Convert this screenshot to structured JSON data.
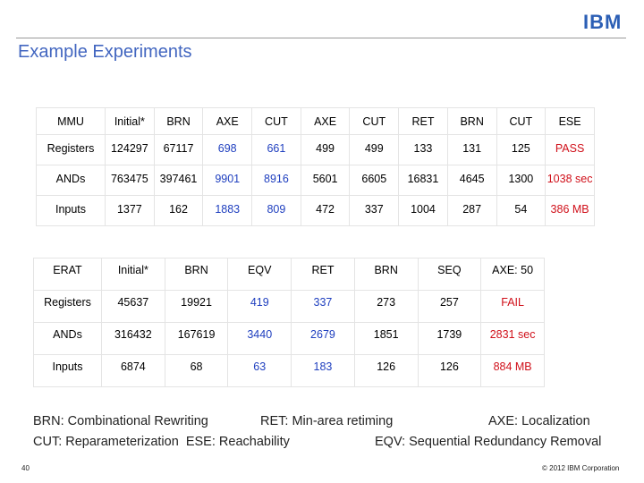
{
  "header": {
    "logo": "IBM",
    "title": "Example Experiments"
  },
  "table1": {
    "header": [
      "MMU",
      "Initial*",
      "BRN",
      "AXE",
      "CUT",
      "AXE",
      "CUT",
      "RET",
      "BRN",
      "CUT",
      "ESE"
    ],
    "rows": [
      [
        "Registers",
        124297,
        67117,
        698,
        661,
        499,
        499,
        133,
        131,
        125,
        "PASS"
      ],
      [
        "ANDs",
        763475,
        397461,
        9901,
        8916,
        5601,
        6605,
        16831,
        4645,
        1300,
        "1038 sec"
      ],
      [
        "Inputs",
        1377,
        162,
        1883,
        809,
        472,
        337,
        1004,
        287,
        54,
        "386 MB"
      ]
    ]
  },
  "table2": {
    "header": [
      "ERAT",
      "Initial*",
      "BRN",
      "EQV",
      "RET",
      "BRN",
      "SEQ",
      "AXE: 50"
    ],
    "rows": [
      [
        "Registers",
        45637,
        19921,
        419,
        337,
        273,
        257,
        "FAIL"
      ],
      [
        "ANDs",
        316432,
        167619,
        3440,
        2679,
        1851,
        1739,
        "2831 sec"
      ],
      [
        "Inputs",
        6874,
        68,
        63,
        183,
        126,
        126,
        "884 MB"
      ]
    ]
  },
  "legend": [
    "BRN: Combinational Rewriting",
    "RET: Min-area retiming",
    "AXE: Localization",
    "CUT: Reparameterization  ESE: Reachability",
    "EQV: Sequential Redundancy Removal"
  ],
  "footer": {
    "page": "40",
    "copyright": "© 2012 IBM Corporation"
  }
}
